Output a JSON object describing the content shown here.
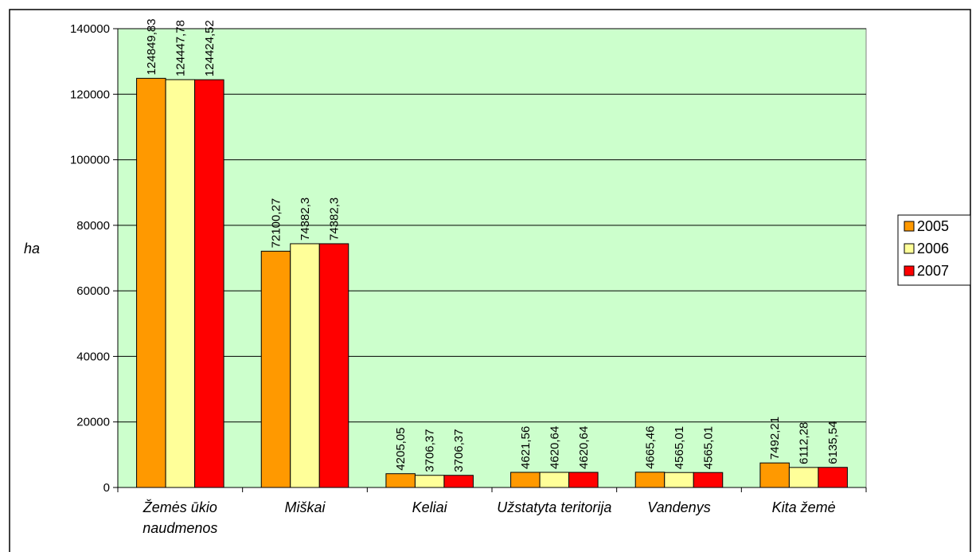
{
  "chart_data": {
    "type": "bar",
    "y_label": "ha",
    "categories": [
      "Žemės ūkio naudmenos",
      "Miškai",
      "Keliai",
      "Užstatyta teritorija",
      "Vandenys",
      "Kita žemė"
    ],
    "series": [
      {
        "name": "2005",
        "color": "#ff9900",
        "values": [
          124849.83,
          72100.27,
          4205.05,
          4621.56,
          4665.46,
          7492.21
        ],
        "value_labels": [
          "124849,83",
          "72100,27",
          "4205,05",
          "4621,56",
          "4665,46",
          "7492,21"
        ]
      },
      {
        "name": "2006",
        "color": "#ffff99",
        "values": [
          124447.78,
          74382.3,
          3706.37,
          4620.64,
          4565.01,
          6112.28
        ],
        "value_labels": [
          "124447,78",
          "74382,3",
          "3706,37",
          "4620,64",
          "4565,01",
          "6112,28"
        ]
      },
      {
        "name": "2007",
        "color": "#ff0000",
        "values": [
          124424.52,
          74382.3,
          3706.37,
          4620.64,
          4565.01,
          6135.54
        ],
        "value_labels": [
          "124424,52",
          "74382,3",
          "3706,37",
          "4620,64",
          "4565,01",
          "6135,54"
        ]
      }
    ],
    "ylim": [
      0,
      140000
    ],
    "yticks": [
      0,
      20000,
      40000,
      60000,
      80000,
      100000,
      120000,
      140000
    ],
    "grid": true,
    "plot_background": "#ccffcc",
    "legend": "right"
  }
}
